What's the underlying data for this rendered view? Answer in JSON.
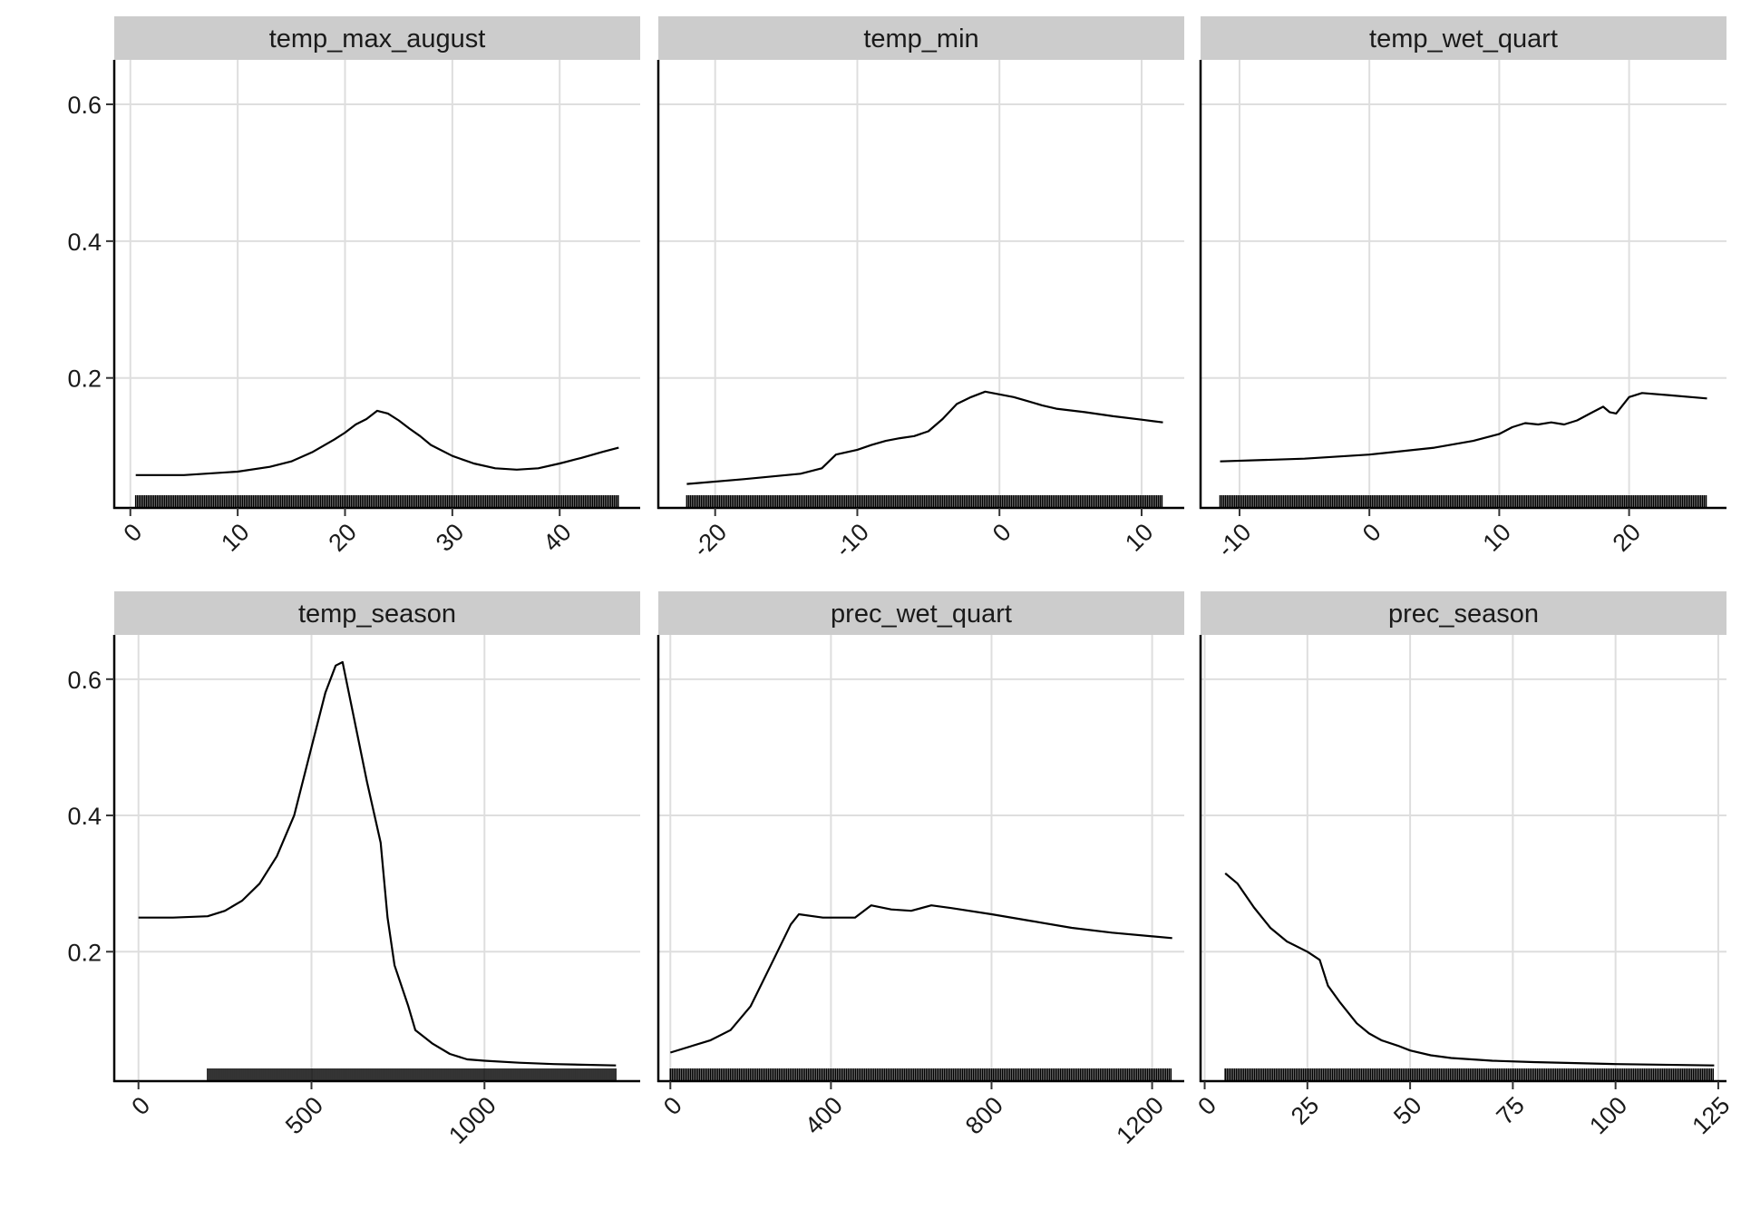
{
  "chart_data": [
    {
      "type": "line",
      "title": "temp_max_august",
      "xlim": [
        -1.5,
        47.5
      ],
      "xticks": [
        0,
        10,
        20,
        30,
        40
      ],
      "ylim": [
        0.01,
        0.665
      ],
      "yticks": [
        0.2,
        0.4,
        0.6
      ],
      "grid": true,
      "x": [
        0.5,
        5,
        10,
        13,
        15,
        17,
        19,
        20,
        21,
        22,
        23,
        24,
        25,
        26,
        27,
        28,
        30,
        32,
        34,
        36,
        38,
        40,
        42,
        44,
        45.5
      ],
      "y": [
        0.058,
        0.058,
        0.063,
        0.07,
        0.078,
        0.092,
        0.11,
        0.12,
        0.132,
        0.14,
        0.152,
        0.148,
        0.138,
        0.126,
        0.115,
        0.102,
        0.086,
        0.075,
        0.068,
        0.066,
        0.068,
        0.075,
        0.083,
        0.092,
        0.098
      ],
      "rug_range": [
        0.5,
        45.5
      ]
    },
    {
      "type": "line",
      "title": "temp_min",
      "xlim": [
        -24,
        13
      ],
      "xticks": [
        -20,
        -10,
        0,
        10
      ],
      "ylim": [
        0.01,
        0.665
      ],
      "yticks": [
        0.2,
        0.4,
        0.6
      ],
      "grid": true,
      "x": [
        -22,
        -18,
        -14,
        -12.5,
        -11.5,
        -10,
        -9,
        -8,
        -7,
        -6,
        -5,
        -4,
        -3,
        -2,
        -1,
        0,
        1,
        2,
        3,
        4,
        6,
        8,
        10,
        11.5
      ],
      "y": [
        0.045,
        0.052,
        0.06,
        0.068,
        0.088,
        0.095,
        0.102,
        0.108,
        0.112,
        0.115,
        0.122,
        0.14,
        0.162,
        0.172,
        0.18,
        0.176,
        0.172,
        0.166,
        0.16,
        0.155,
        0.15,
        0.144,
        0.139,
        0.135
      ],
      "rug_range": [
        -22,
        11.5
      ]
    },
    {
      "type": "line",
      "title": "temp_wet_quart",
      "xlim": [
        -13,
        27.5
      ],
      "xticks": [
        -10,
        0,
        10,
        20
      ],
      "ylim": [
        0.01,
        0.665
      ],
      "yticks": [
        0.2,
        0.4,
        0.6
      ],
      "grid": true,
      "x": [
        -11.5,
        -5,
        0,
        5,
        8,
        10,
        11,
        12,
        13,
        14,
        15,
        16,
        17,
        18,
        18.5,
        19,
        20,
        21,
        23,
        26
      ],
      "y": [
        0.078,
        0.082,
        0.088,
        0.098,
        0.108,
        0.118,
        0.128,
        0.134,
        0.132,
        0.135,
        0.132,
        0.138,
        0.148,
        0.158,
        0.15,
        0.148,
        0.172,
        0.178,
        0.175,
        0.17
      ],
      "rug_range": [
        -11.5,
        26
      ]
    },
    {
      "type": "line",
      "title": "temp_season",
      "xlim": [
        -70,
        1450
      ],
      "xticks": [
        0,
        500,
        1000
      ],
      "ylim": [
        0.01,
        0.665
      ],
      "yticks": [
        0.2,
        0.4,
        0.6
      ],
      "grid": true,
      "x": [
        0,
        100,
        200,
        250,
        300,
        350,
        400,
        450,
        500,
        540,
        570,
        590,
        620,
        660,
        700,
        720,
        740,
        780,
        800,
        850,
        900,
        950,
        1000,
        1100,
        1200,
        1380
      ],
      "y": [
        0.25,
        0.25,
        0.252,
        0.26,
        0.275,
        0.3,
        0.34,
        0.4,
        0.5,
        0.58,
        0.62,
        0.625,
        0.55,
        0.45,
        0.36,
        0.25,
        0.18,
        0.12,
        0.085,
        0.065,
        0.05,
        0.042,
        0.04,
        0.037,
        0.035,
        0.033
      ],
      "rug_range": [
        200,
        1380
      ]
    },
    {
      "type": "line",
      "title": "prec_wet_quart",
      "xlim": [
        -30,
        1280
      ],
      "xticks": [
        0,
        400,
        800,
        1200
      ],
      "ylim": [
        0.01,
        0.665
      ],
      "yticks": [
        0.2,
        0.4,
        0.6
      ],
      "grid": true,
      "x": [
        0,
        100,
        150,
        200,
        250,
        300,
        320,
        380,
        420,
        460,
        500,
        550,
        600,
        650,
        700,
        800,
        900,
        1000,
        1100,
        1250
      ],
      "y": [
        0.052,
        0.07,
        0.085,
        0.12,
        0.18,
        0.24,
        0.255,
        0.25,
        0.25,
        0.25,
        0.268,
        0.262,
        0.26,
        0.268,
        0.264,
        0.255,
        0.245,
        0.235,
        0.228,
        0.22
      ],
      "rug_range": [
        0,
        1250
      ]
    },
    {
      "type": "line",
      "title": "prec_season",
      "xlim": [
        -1,
        127
      ],
      "xticks": [
        0,
        25,
        50,
        75,
        100,
        125
      ],
      "ylim": [
        0.01,
        0.665
      ],
      "yticks": [
        0.2,
        0.4,
        0.6
      ],
      "grid": true,
      "x": [
        5,
        8,
        12,
        16,
        20,
        25,
        28,
        30,
        33,
        37,
        40,
        43,
        47,
        50,
        55,
        60,
        70,
        80,
        100,
        124
      ],
      "y": [
        0.315,
        0.3,
        0.265,
        0.235,
        0.215,
        0.2,
        0.188,
        0.15,
        0.125,
        0.095,
        0.08,
        0.07,
        0.062,
        0.055,
        0.048,
        0.044,
        0.04,
        0.038,
        0.035,
        0.033
      ],
      "rug_range": [
        5,
        124
      ]
    }
  ]
}
